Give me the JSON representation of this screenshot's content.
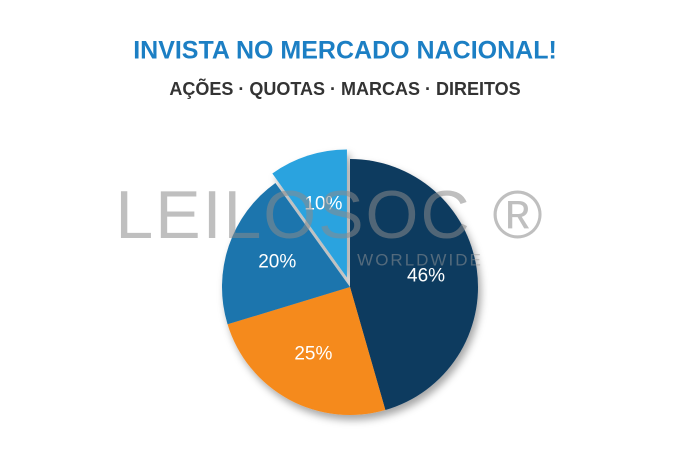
{
  "chart_data": {
    "type": "pie",
    "title": "INVISTA NO MERCADO NACIONAL!",
    "subtitle": "AÇÕES · QUOTAS · MARCAS · DIREITOS",
    "watermark": "LEILOSOC ®",
    "watermark_subtitle": "WORLDWIDE",
    "series": [
      {
        "name": "46%",
        "value": 46,
        "color": "#0f3a5f"
      },
      {
        "name": "25%",
        "value": 25,
        "color": "#f58a1f"
      },
      {
        "name": "20%",
        "value": 20,
        "color": "#1a75ad"
      },
      {
        "name": "10%",
        "value": 10,
        "color": "#29a3df",
        "exploded": true
      }
    ]
  }
}
